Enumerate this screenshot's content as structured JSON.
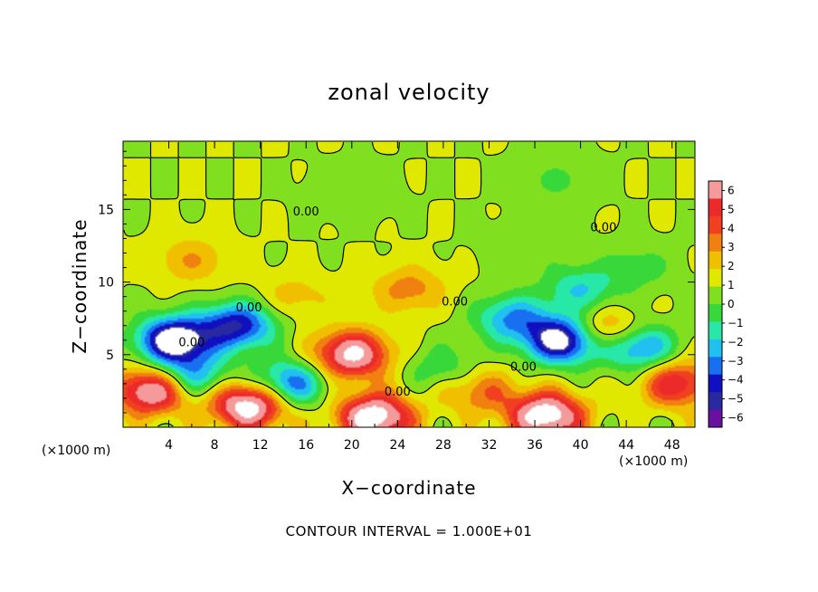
{
  "chart_data": {
    "type": "heatmap",
    "title": "zonal velocity",
    "xlabel": "X−coordinate",
    "ylabel": "Z−coordinate",
    "x_unit": "(×1000 m)",
    "y_unit": "(×1000 m)",
    "x_ticks": [
      "4",
      "8",
      "12",
      "16",
      "20",
      "24",
      "28",
      "32",
      "36",
      "40",
      "44",
      "48"
    ],
    "x_tick_values": [
      4,
      8,
      12,
      16,
      20,
      24,
      28,
      32,
      36,
      40,
      44,
      48
    ],
    "y_ticks": [
      "5",
      "10",
      "15"
    ],
    "y_tick_values": [
      5,
      10,
      15
    ],
    "xlim": [
      0,
      50
    ],
    "ylim": [
      0,
      19.7
    ],
    "colorbar_labels": [
      "6",
      "5",
      "4",
      "3",
      "2",
      "1",
      "0",
      "−1",
      "−2",
      "−3",
      "−4",
      "−5",
      "−6"
    ],
    "colorbar_levels": [
      6,
      5,
      4,
      3,
      2,
      1,
      0,
      -1,
      -2,
      -3,
      -4,
      -5,
      -6
    ],
    "colorbar_colors": [
      "#f49a9a",
      "#ec2a2a",
      "#f04020",
      "#f08010",
      "#f0c000",
      "#e0e800",
      "#80e020",
      "#38d83a",
      "#28e8a8",
      "#20c0f0",
      "#1870f0",
      "#1010c0",
      "#2828a0",
      "#6a10a0"
    ],
    "contour_label": "0.00",
    "contour_interval_text": "CONTOUR INTERVAL = 1.000E+01",
    "features": [
      {
        "x": 38.5,
        "z": 6.0,
        "value": -8
      },
      {
        "x": 4.5,
        "z": 6.0,
        "value": -8
      },
      {
        "x": 10.0,
        "z": 7.0,
        "value": -6
      },
      {
        "x": 20.0,
        "z": 5.0,
        "value": 7
      },
      {
        "x": 34.0,
        "z": 7.5,
        "value": -4
      },
      {
        "x": 2.5,
        "z": 2.5,
        "value": 7
      },
      {
        "x": 11.0,
        "z": 1.5,
        "value": 8
      },
      {
        "x": 22.0,
        "z": 0.7,
        "value": 8
      },
      {
        "x": 37.0,
        "z": 0.8,
        "value": 8
      },
      {
        "x": 14.5,
        "z": 3.0,
        "value": -5
      },
      {
        "x": 31.0,
        "z": 2.5,
        "value": 3
      },
      {
        "x": 45.0,
        "z": 5.5,
        "value": -5
      },
      {
        "x": 42.0,
        "z": 6.5,
        "value": 4
      },
      {
        "x": 48.5,
        "z": 3.0,
        "value": 5
      },
      {
        "x": 40.0,
        "z": 9.5,
        "value": -3
      },
      {
        "x": 45.0,
        "z": 11.0,
        "value": -1.5
      },
      {
        "x": 25.0,
        "z": 9.5,
        "value": 2.5
      },
      {
        "x": 6.0,
        "z": 11.5,
        "value": 2
      },
      {
        "x": 35.0,
        "z": 12.5,
        "value": -1
      },
      {
        "x": 20.0,
        "z": 16.0,
        "value": -1
      },
      {
        "x": 38.0,
        "z": 17.0,
        "value": -1.2
      },
      {
        "x": 15.0,
        "z": 9.0,
        "value": 1.5
      },
      {
        "x": 28.0,
        "z": 4.0,
        "value": -2
      },
      {
        "x": 6.0,
        "z": 3.5,
        "value": -4
      }
    ]
  }
}
